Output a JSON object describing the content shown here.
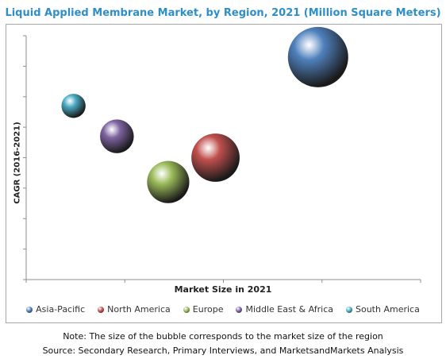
{
  "chart_data": {
    "type": "bubble",
    "title": "Liquid Applied Membrane Market, by Region, 2021 (Million Square Meters)",
    "xlabel": "Market Size in 2021",
    "ylabel": "CAGR (2016-2021)",
    "grid": false,
    "legend_position": "bottom",
    "series": [
      {
        "name": "Asia-Pacific",
        "x": 7.4,
        "y": 7.3,
        "size": 1.0,
        "color": "#4f81bd"
      },
      {
        "name": "North America",
        "x": 4.8,
        "y": 4.0,
        "size": 0.8,
        "color": "#c0504d"
      },
      {
        "name": "Europe",
        "x": 3.6,
        "y": 3.2,
        "size": 0.7,
        "color": "#9bbb59"
      },
      {
        "name": "Middle East & Africa",
        "x": 2.3,
        "y": 4.7,
        "size": 0.56,
        "color": "#8064a2"
      },
      {
        "name": "South America",
        "x": 1.2,
        "y": 5.7,
        "size": 0.4,
        "color": "#4bacc6"
      }
    ],
    "xlim": [
      0,
      10
    ],
    "ylim": [
      0,
      8
    ]
  },
  "footnotes": {
    "note": "Note: The size of the bubble corresponds to the market size of the region",
    "source": "Source: Secondary Research, Primary Interviews, and MarketsandMarkets Analysis"
  }
}
